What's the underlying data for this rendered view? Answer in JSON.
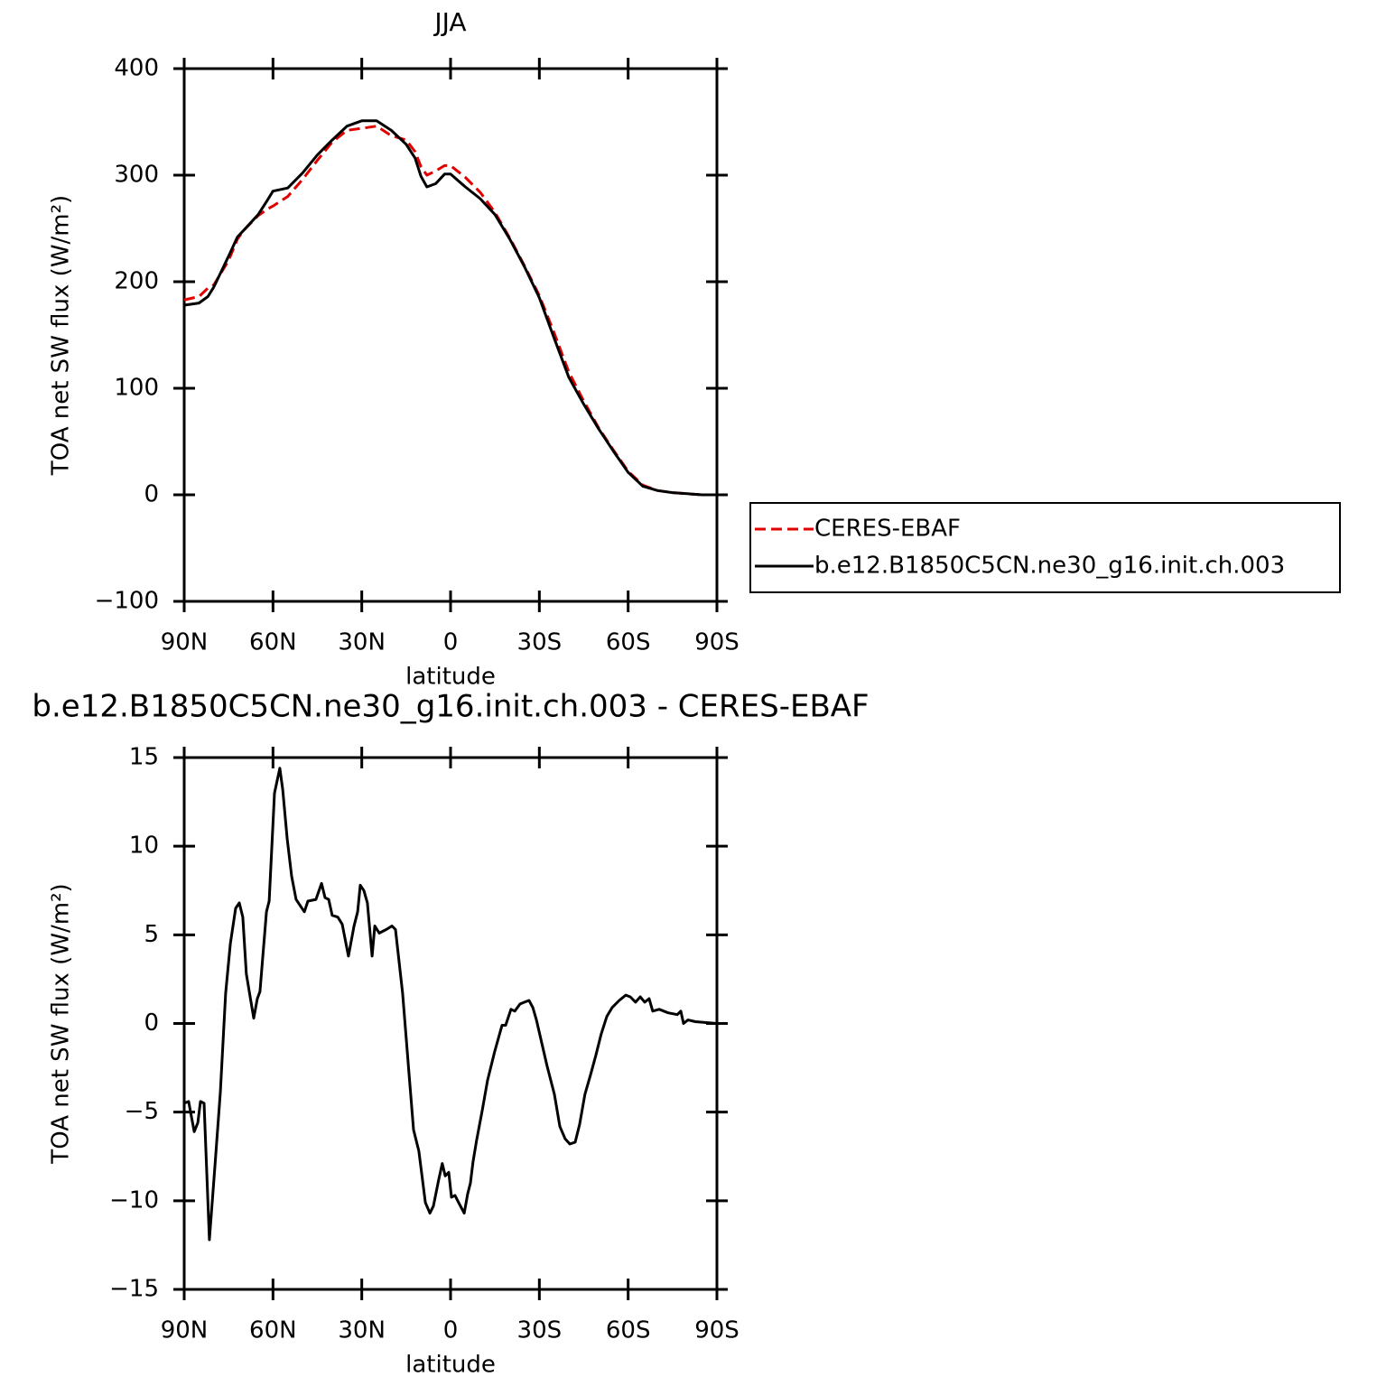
{
  "chart_data": [
    {
      "type": "line",
      "title": "JJA",
      "xlabel": "latitude",
      "ylabel": "TOA net SW flux (W/m²)",
      "x": [
        90,
        85,
        82,
        80,
        75,
        72,
        70,
        65,
        62,
        60,
        55,
        50,
        45,
        40,
        35,
        30,
        25,
        20,
        15,
        12,
        10,
        8,
        5,
        2,
        0,
        -5,
        -10,
        -15,
        -20,
        -25,
        -30,
        -35,
        -40,
        -45,
        -50,
        -55,
        -60,
        -65,
        -70,
        -75,
        -80,
        -85,
        -90
      ],
      "series": [
        {
          "name": "CERES-EBAF",
          "color": "#e00000",
          "style": "dashed",
          "values": [
            183,
            186,
            194,
            197,
            220,
            240,
            248,
            262,
            268,
            271,
            280,
            296,
            314,
            331,
            342,
            344,
            346,
            337,
            333,
            322,
            308,
            300,
            304,
            309,
            309,
            298,
            284,
            265,
            241,
            215,
            187,
            152,
            115,
            88,
            63,
            42,
            22,
            9,
            4,
            2,
            1,
            0,
            0
          ]
        },
        {
          "name": "b.e12.B1850C5CN.ne30_g16.init.ch.003",
          "color": "#000000",
          "style": "solid",
          "values": [
            178,
            180,
            186,
            195,
            224,
            242,
            248,
            263,
            276,
            285,
            288,
            302,
            319,
            333,
            346,
            351,
            351,
            342,
            329,
            316,
            299,
            289,
            292,
            301,
            301,
            289,
            278,
            263,
            240,
            214,
            185,
            147,
            110,
            85,
            62,
            41,
            21,
            8,
            4,
            2,
            1,
            0,
            0
          ]
        }
      ],
      "xlim": [
        90,
        -90
      ],
      "xticks": [
        {
          "value": 90,
          "label": "90N"
        },
        {
          "value": 60,
          "label": "60N"
        },
        {
          "value": 30,
          "label": "30N"
        },
        0,
        {
          "value": -30,
          "label": "30S"
        },
        {
          "value": -60,
          "label": "60S"
        },
        {
          "value": -90,
          "label": "90S"
        }
      ],
      "ylim": [
        -100,
        400
      ],
      "yticks": [
        {
          "value": -100,
          "label": "−100"
        },
        0,
        100,
        200,
        300,
        400
      ],
      "legend": "right"
    },
    {
      "type": "line",
      "title": "b.e12.B1850C5CN.ne30_g16.init.ch.003 - CERES-EBAF",
      "xlabel": "latitude",
      "ylabel": "TOA net SW flux (W/m²)",
      "x": [
        90.0,
        88.5,
        86.6,
        85.4,
        84.5,
        83.3,
        81.5,
        79.6,
        77.8,
        76.0,
        74.4,
        72.6,
        71.4,
        70.2,
        69.0,
        66.5,
        65.3,
        64.4,
        62.2,
        61.3,
        59.5,
        57.7,
        56.7,
        55.2,
        53.7,
        52.2,
        50.6,
        49.4,
        48.2,
        45.5,
        43.6,
        42.4,
        41.2,
        40.0,
        38.1,
        36.6,
        34.5,
        32.6,
        31.4,
        30.5,
        29.3,
        28.1,
        26.5,
        25.6,
        24.1,
        21.7,
        19.8,
        18.6,
        16.2,
        14.0,
        12.5,
        10.7,
        8.5,
        7.0,
        5.8,
        4.0,
        2.8,
        1.8,
        0.6,
        -0.3,
        -1.5,
        -2.7,
        -4.6,
        -5.8,
        -6.7,
        -7.6,
        -8.8,
        -10.7,
        -12.5,
        -14.9,
        -17.4,
        -18.6,
        -20.4,
        -21.7,
        -23.5,
        -25.0,
        -26.5,
        -27.8,
        -29.0,
        -30.8,
        -32.6,
        -35.1,
        -36.9,
        -38.7,
        -40.3,
        -42.1,
        -43.6,
        -45.4,
        -47.3,
        -49.1,
        -50.9,
        -52.8,
        -54.6,
        -57.0,
        -59.2,
        -60.7,
        -62.5,
        -64.1,
        -65.6,
        -67.1,
        -68.3,
        -70.5,
        -73.5,
        -76.6,
        -77.8,
        -78.7,
        -80.2,
        -82.7,
        -90.0
      ],
      "series": [
        {
          "color": "#000000",
          "style": "solid",
          "values": [
            -4.5,
            -4.4,
            -6.1,
            -5.6,
            -4.4,
            -4.5,
            -12.2,
            -8.0,
            -3.9,
            1.7,
            4.5,
            6.5,
            6.8,
            6.0,
            2.8,
            0.3,
            1.4,
            1.8,
            6.3,
            6.9,
            13.0,
            14.4,
            13.2,
            10.4,
            8.3,
            7.0,
            6.6,
            6.3,
            6.9,
            7.0,
            7.9,
            7.1,
            7.0,
            6.1,
            6.0,
            5.6,
            3.8,
            5.5,
            6.3,
            7.8,
            7.5,
            6.8,
            3.8,
            5.5,
            5.1,
            5.3,
            5.5,
            5.3,
            1.7,
            -2.9,
            -6.0,
            -7.2,
            -10.1,
            -10.7,
            -10.3,
            -8.8,
            -7.9,
            -8.6,
            -8.4,
            -9.8,
            -9.7,
            -10.1,
            -10.7,
            -9.6,
            -9.0,
            -7.8,
            -6.6,
            -4.9,
            -3.2,
            -1.6,
            -0.1,
            -0.1,
            0.8,
            0.7,
            1.1,
            1.2,
            1.3,
            0.9,
            0.2,
            -1.1,
            -2.4,
            -4.0,
            -5.8,
            -6.5,
            -6.8,
            -6.7,
            -5.7,
            -4.0,
            -2.9,
            -1.8,
            -0.6,
            0.4,
            0.9,
            1.3,
            1.6,
            1.5,
            1.2,
            1.5,
            1.2,
            1.4,
            0.7,
            0.8,
            0.6,
            0.5,
            0.7,
            0.0,
            0.2,
            0.1,
            0.0
          ]
        }
      ],
      "xlim": [
        90,
        -90
      ],
      "xticks": [
        {
          "value": 90,
          "label": "90N"
        },
        {
          "value": 60,
          "label": "60N"
        },
        {
          "value": 30,
          "label": "30N"
        },
        0,
        {
          "value": -30,
          "label": "30S"
        },
        {
          "value": -60,
          "label": "60S"
        },
        {
          "value": -90,
          "label": "90S"
        }
      ],
      "ylim": [
        -15,
        15
      ],
      "yticks": [
        {
          "value": -15,
          "label": "−15"
        },
        {
          "value": -10,
          "label": "−10"
        },
        {
          "value": -5,
          "label": "−5"
        },
        0,
        5,
        10,
        15
      ]
    }
  ]
}
